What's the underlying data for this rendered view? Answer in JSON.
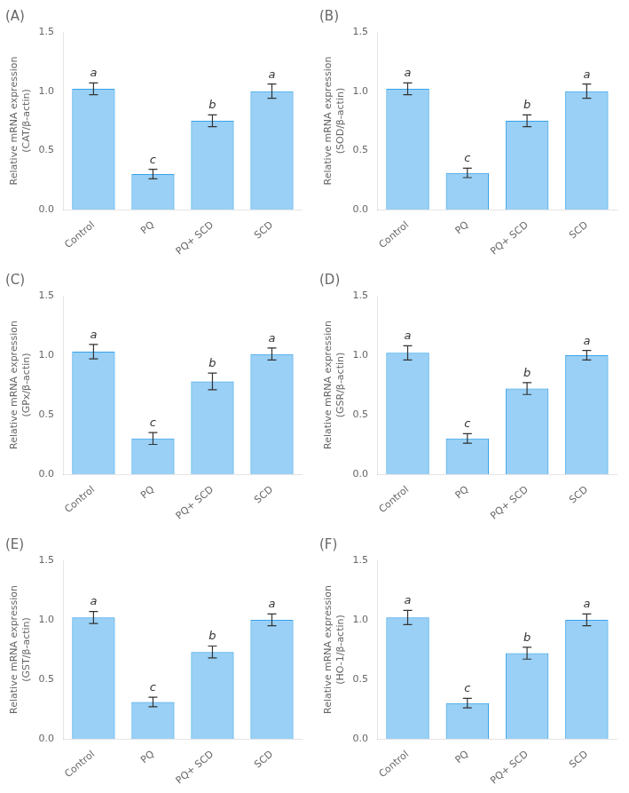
{
  "chart_data": [
    {
      "type": "bar",
      "title": "(A)",
      "ylabel": "Relative mRNA expression\n(CAT/β-actin)",
      "categories": [
        "Control",
        "PQ",
        "PQ+ SCD",
        "SCD"
      ],
      "values": [
        1.02,
        0.3,
        0.75,
        1.0
      ],
      "errors": [
        0.05,
        0.04,
        0.05,
        0.06
      ],
      "annotations": [
        "a",
        "c",
        "b",
        "a"
      ],
      "ylim": [
        0,
        1.5
      ],
      "yticks": [
        {
          "value": 0,
          "label": "0.0"
        },
        0.5,
        {
          "value": 1,
          "label": "1.0"
        },
        1.5
      ],
      "grid": false
    },
    {
      "type": "bar",
      "title": "(B)",
      "ylabel": "Relative mRNA expression\n(SOD/β-actin)",
      "categories": [
        "Control",
        "PQ",
        "PQ+ SCD",
        "SCD"
      ],
      "values": [
        1.02,
        0.31,
        0.75,
        1.0
      ],
      "errors": [
        0.05,
        0.04,
        0.05,
        0.06
      ],
      "annotations": [
        "a",
        "c",
        "b",
        "a"
      ],
      "ylim": [
        0,
        1.5
      ],
      "yticks": [
        {
          "value": 0,
          "label": "0.0"
        },
        0.5,
        {
          "value": 1,
          "label": "1.0"
        },
        1.5
      ],
      "grid": false
    },
    {
      "type": "bar",
      "title": "(C)",
      "ylabel": "Relative mRNA expression\n(GPx/β-actin)",
      "categories": [
        "Control",
        "PQ",
        "PQ+ SCD",
        "SCD"
      ],
      "values": [
        1.03,
        0.3,
        0.78,
        1.01
      ],
      "errors": [
        0.06,
        0.05,
        0.07,
        0.05
      ],
      "annotations": [
        "a",
        "c",
        "b",
        "a"
      ],
      "ylim": [
        0,
        1.5
      ],
      "yticks": [
        {
          "value": 0,
          "label": "0.0"
        },
        0.5,
        {
          "value": 1,
          "label": "1.0"
        },
        1.5
      ],
      "grid": false
    },
    {
      "type": "bar",
      "title": "(D)",
      "ylabel": "Relative mRNA expression\n(GSR/β-actin)",
      "categories": [
        "Control",
        "PQ",
        "PQ+ SCD",
        "SCD"
      ],
      "values": [
        1.02,
        0.3,
        0.72,
        1.0
      ],
      "errors": [
        0.06,
        0.04,
        0.05,
        0.04
      ],
      "annotations": [
        "a",
        "c",
        "b",
        "a"
      ],
      "ylim": [
        0,
        1.5
      ],
      "yticks": [
        {
          "value": 0,
          "label": "0.0"
        },
        0.5,
        {
          "value": 1,
          "label": "1.0"
        },
        1.5
      ],
      "grid": false
    },
    {
      "type": "bar",
      "title": "(E)",
      "ylabel": "Relative mRNA expression\n(GST/β-actin)",
      "categories": [
        "Control",
        "PQ",
        "PQ+ SCD",
        "SCD"
      ],
      "values": [
        1.02,
        0.31,
        0.73,
        1.0
      ],
      "errors": [
        0.05,
        0.04,
        0.05,
        0.05
      ],
      "annotations": [
        "a",
        "c",
        "b",
        "a"
      ],
      "ylim": [
        0,
        1.5
      ],
      "yticks": [
        {
          "value": 0,
          "label": "0.0"
        },
        0.5,
        {
          "value": 1,
          "label": "1.0"
        },
        1.5
      ],
      "grid": false
    },
    {
      "type": "bar",
      "title": "(F)",
      "ylabel": "Relative mRNA expression\n(HO-1/β-actin)",
      "categories": [
        "Control",
        "PQ",
        "PQ+ SCD",
        "SCD"
      ],
      "values": [
        1.02,
        0.3,
        0.72,
        1.0
      ],
      "errors": [
        0.06,
        0.04,
        0.05,
        0.05
      ],
      "annotations": [
        "a",
        "c",
        "b",
        "a"
      ],
      "ylim": [
        0,
        1.5
      ],
      "yticks": [
        {
          "value": 0,
          "label": "0.0"
        },
        0.5,
        {
          "value": 1,
          "label": "1.0"
        },
        1.5
      ],
      "grid": false
    }
  ]
}
